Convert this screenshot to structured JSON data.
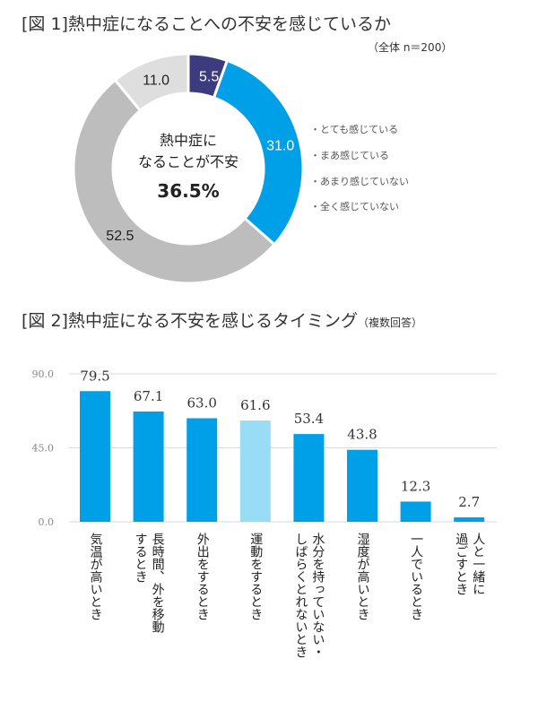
{
  "chart_data": [
    {
      "type": "pie",
      "title": "[図 1]熱中症になることへの不安を感じているか",
      "subtitle": "（全体 n＝200）",
      "center_text": [
        "熱中症に",
        "なることが不安"
      ],
      "center_value": "36.5%",
      "categories": [
        "とても感じている",
        "まあ感じている",
        "あまり感じていない",
        "全く感じていない"
      ],
      "values": [
        5.5,
        31.0,
        52.5,
        11.0
      ],
      "value_labels": [
        "5.5",
        "31.0",
        "52.5",
        "11.0"
      ],
      "colors": [
        "#3b3b7d",
        "#00a0e9",
        "#bdbdbd",
        "#dedede"
      ],
      "donut": true,
      "legend_placement": "right"
    },
    {
      "type": "bar",
      "title": "[図 2]熱中症になる不安を感じるタイミング",
      "title_note": "（複数回答）",
      "categories": [
        "気温が高いとき",
        "長時間、外を移動\nするとき",
        "外出をするとき",
        "運動をするとき",
        "水分を持っていない・\nしばらくとれないとき",
        "湿度が高いとき",
        "一人でいるとき",
        "人と一緒に\n過ごすとき"
      ],
      "values": [
        79.5,
        67.1,
        63.0,
        61.6,
        53.4,
        43.8,
        12.3,
        2.7
      ],
      "value_labels": [
        "79.5",
        "67.1",
        "63.0",
        "61.6",
        "53.4",
        "43.8",
        "12.3",
        "2.7"
      ],
      "ylim": [
        0,
        90
      ],
      "yticks": [
        "0.0",
        "45.0",
        "90.0"
      ],
      "grid": true,
      "bar_color": "#00a0e9",
      "highlight_color": "#99dcf6",
      "highlight_index": 3
    }
  ]
}
